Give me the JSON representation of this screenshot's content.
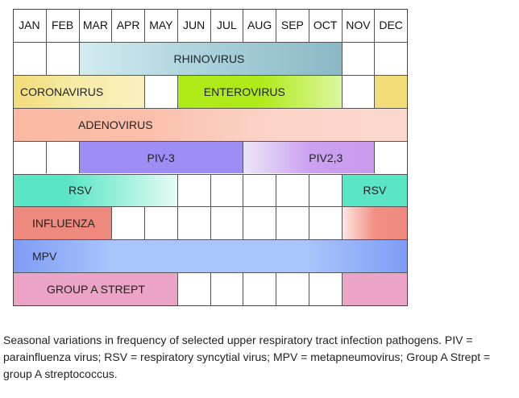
{
  "months": [
    "JAN",
    "FEB",
    "MAR",
    "APR",
    "MAY",
    "JUN",
    "JUL",
    "AUG",
    "SEP",
    "OCT",
    "NOV",
    "DEC"
  ],
  "rows": [
    {
      "pathogens": [
        {
          "name": "rhinovirus",
          "label": "RHINOVIRUS",
          "start": 2,
          "end": 10,
          "colors": [
            "#d2ecf0",
            "#a9d0da",
            "#8ab8c5"
          ]
        }
      ]
    },
    {
      "pathogens": [
        {
          "name": "coronavirus",
          "label": "CORONAVIRUS",
          "start": 0,
          "end": 4,
          "colors": [
            "#f2dc78",
            "#f6eba8",
            "#f9efbe"
          ]
        },
        {
          "name": "enterovirus",
          "label": "ENTEROVIRUS",
          "start": 5,
          "end": 10,
          "colors": [
            "#aeea18",
            "#aeea18",
            "#dcf6a0"
          ]
        },
        {
          "name": "coronavirus-late",
          "label": "",
          "start": 11,
          "end": 12,
          "colors": [
            "#f2dc78",
            "#f2dc78"
          ]
        }
      ]
    },
    {
      "pathogens": [
        {
          "name": "adenovirus",
          "label": "ADENOVIRUS",
          "start": 0,
          "end": 12,
          "colors": [
            "#fbb9a2",
            "#fbbfab",
            "#fcd4c8",
            "#fcd8cc"
          ]
        }
      ]
    },
    {
      "pathogens": [
        {
          "name": "piv-3",
          "label": "PIV-3",
          "start": 2,
          "end": 7,
          "colors": [
            "#9e8df4",
            "#9e8df4"
          ]
        },
        {
          "name": "piv2-3",
          "label": "PIV2,3",
          "start": 7,
          "end": 11,
          "colors": [
            "#ece6f8",
            "#cba1f0",
            "#c99aee"
          ]
        }
      ]
    },
    {
      "pathogens": [
        {
          "name": "rsv",
          "label": "RSV",
          "start": 0,
          "end": 5,
          "colors": [
            "#5ae6c5",
            "#5ae6c5",
            "#9ef0db",
            "#e4fbf5"
          ]
        },
        {
          "name": "rsv-late",
          "label": "RSV",
          "start": 10,
          "end": 12,
          "colors": [
            "#5ae6c5",
            "#5ae6c5"
          ]
        }
      ]
    },
    {
      "pathogens": [
        {
          "name": "influenza",
          "label": "INFLUENZA",
          "start": 0,
          "end": 3,
          "colors": [
            "#ee8a7d",
            "#ee8a7d"
          ]
        },
        {
          "name": "influenza-late",
          "label": "",
          "start": 10,
          "end": 12,
          "colors": [
            "#fde6e2",
            "#f18f84",
            "#ee8a7d"
          ]
        }
      ]
    },
    {
      "pathogens": [
        {
          "name": "mpv",
          "label": "MPV",
          "start": 0,
          "end": 12,
          "colors": [
            "#7f9cf5",
            "#a9c4fb",
            "#a9c4fb",
            "#a9c4fb",
            "#7f9cf5"
          ]
        }
      ]
    },
    {
      "pathogens": [
        {
          "name": "group-a-strept",
          "label": "GROUP A STREPT",
          "start": 0,
          "end": 5,
          "colors": [
            "#eba3c6",
            "#eba3c6"
          ]
        },
        {
          "name": "group-a-strept-late",
          "label": "",
          "start": 10,
          "end": 12,
          "colors": [
            "#eba3c6",
            "#eba3c6"
          ]
        }
      ]
    }
  ],
  "caption": "Seasonal variations in frequency of selected upper respiratory tract infection pathogens. PIV = parainfluenza virus; RSV = respiratory syncytial virus; MPV = metapneumovirus; Group A Strept = group A streptococcus."
}
